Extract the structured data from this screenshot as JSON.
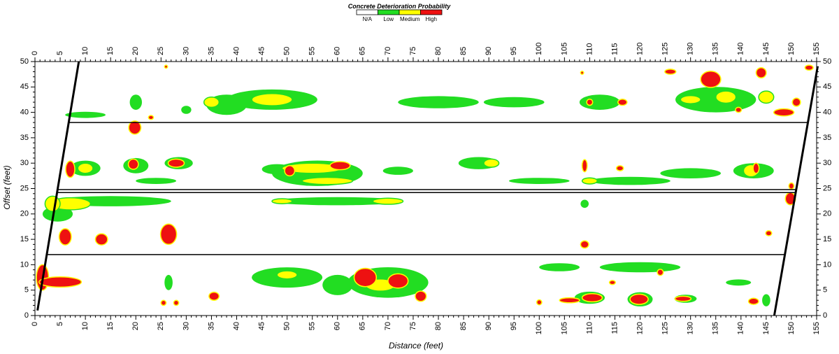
{
  "chart_data": {
    "type": "heatmap",
    "title": "",
    "xlabel": "Distance (feet)",
    "ylabel": "Offset (feet)",
    "xlim": [
      0,
      155
    ],
    "ylim": [
      0,
      50
    ],
    "x_ticks": [
      0,
      5,
      10,
      15,
      20,
      25,
      30,
      35,
      40,
      45,
      50,
      55,
      60,
      65,
      70,
      75,
      80,
      85,
      90,
      95,
      100,
      105,
      110,
      115,
      120,
      125,
      130,
      135,
      140,
      145,
      150,
      155
    ],
    "y_ticks": [
      0,
      5,
      10,
      15,
      20,
      25,
      30,
      35,
      40,
      45,
      50
    ],
    "x_tick_labels_top_and_bottom": true,
    "y_tick_labels_left_and_right": true,
    "grid": false,
    "legend": {
      "title": "Concrete Deterioration Probability",
      "placement": "top-center",
      "entries": [
        {
          "label": "N/A",
          "color": "#ffffff"
        },
        {
          "label": "Low",
          "color": "#22dd22"
        },
        {
          "label": "Medium",
          "color": "#ffff00"
        },
        {
          "label": "High",
          "color": "#ee1111"
        }
      ]
    },
    "colors": {
      "na": "#ffffff",
      "low": "#22dd22",
      "medium": "#ffff00",
      "high": "#ee1111"
    },
    "boundary_lines": [
      {
        "name": "left-edge",
        "points": [
          [
            0.5,
            1
          ],
          [
            8.7,
            50
          ]
        ],
        "style": "thick"
      },
      {
        "name": "right-edge",
        "points": [
          [
            146.6,
            0
          ],
          [
            155.2,
            49
          ]
        ],
        "style": "thick"
      },
      {
        "name": "joint-38",
        "points": [
          [
            6.8,
            38
          ],
          [
            153.1,
            38
          ]
        ],
        "style": "thin"
      },
      {
        "name": "joint-24.8",
        "points": [
          [
            4.5,
            24.8
          ],
          [
            151.0,
            24.8
          ]
        ],
        "style": "thin"
      },
      {
        "name": "joint-24.2",
        "points": [
          [
            4.4,
            24.2
          ],
          [
            150.9,
            24.2
          ]
        ],
        "style": "thin"
      },
      {
        "name": "joint-12",
        "points": [
          [
            2.4,
            12
          ],
          [
            148.9,
            12
          ]
        ],
        "style": "thin"
      }
    ],
    "patches": [
      {
        "x": 1.5,
        "y": 7.5,
        "rx": 1.2,
        "ry": 2.5,
        "level": "high"
      },
      {
        "x": 5.0,
        "y": 6.6,
        "rx": 4.2,
        "ry": 1.0,
        "level": "high"
      },
      {
        "x": 26.5,
        "y": 16.0,
        "rx": 1.6,
        "ry": 2.0,
        "level": "high"
      },
      {
        "x": 6.0,
        "y": 15.5,
        "rx": 1.2,
        "ry": 1.6,
        "level": "high"
      },
      {
        "x": 13.2,
        "y": 15.0,
        "rx": 1.2,
        "ry": 1.1,
        "level": "high"
      },
      {
        "x": 19.8,
        "y": 37.0,
        "rx": 1.2,
        "ry": 1.3,
        "level": "high"
      },
      {
        "x": 19.5,
        "y": 29.8,
        "rx": 1.0,
        "ry": 1.0,
        "level": "high"
      },
      {
        "x": 28.0,
        "y": 30.0,
        "rx": 1.6,
        "ry": 0.8,
        "level": "high"
      },
      {
        "x": 7.0,
        "y": 28.8,
        "rx": 0.9,
        "ry": 1.6,
        "level": "high"
      },
      {
        "x": 60.5,
        "y": 29.5,
        "rx": 2.0,
        "ry": 0.8,
        "level": "high"
      },
      {
        "x": 50.5,
        "y": 28.5,
        "rx": 1.0,
        "ry": 1.0,
        "level": "high"
      },
      {
        "x": 65.5,
        "y": 7.5,
        "rx": 2.2,
        "ry": 1.8,
        "level": "high"
      },
      {
        "x": 72.0,
        "y": 6.8,
        "rx": 2.0,
        "ry": 1.4,
        "level": "high"
      },
      {
        "x": 76.5,
        "y": 3.8,
        "rx": 1.1,
        "ry": 1.0,
        "level": "high"
      },
      {
        "x": 35.5,
        "y": 3.8,
        "rx": 1.0,
        "ry": 0.8,
        "level": "high"
      },
      {
        "x": 28.0,
        "y": 2.5,
        "rx": 0.5,
        "ry": 0.5,
        "level": "high"
      },
      {
        "x": 25.5,
        "y": 2.5,
        "rx": 0.5,
        "ry": 0.5,
        "level": "high"
      },
      {
        "x": 110.5,
        "y": 3.5,
        "rx": 2.0,
        "ry": 0.8,
        "level": "high"
      },
      {
        "x": 106.0,
        "y": 3.0,
        "rx": 2.0,
        "ry": 0.5,
        "level": "high"
      },
      {
        "x": 119.8,
        "y": 3.2,
        "rx": 1.8,
        "ry": 1.0,
        "level": "high"
      },
      {
        "x": 128.5,
        "y": 3.3,
        "rx": 1.6,
        "ry": 0.5,
        "level": "high"
      },
      {
        "x": 142.5,
        "y": 2.8,
        "rx": 1.0,
        "ry": 0.6,
        "level": "high"
      },
      {
        "x": 100.0,
        "y": 2.6,
        "rx": 0.5,
        "ry": 0.5,
        "level": "high"
      },
      {
        "x": 109.0,
        "y": 14.0,
        "rx": 0.8,
        "ry": 0.7,
        "level": "high"
      },
      {
        "x": 145.5,
        "y": 16.2,
        "rx": 0.6,
        "ry": 0.5,
        "level": "high"
      },
      {
        "x": 109.0,
        "y": 29.5,
        "rx": 0.5,
        "ry": 1.2,
        "level": "high"
      },
      {
        "x": 116.0,
        "y": 29.0,
        "rx": 0.7,
        "ry": 0.5,
        "level": "high"
      },
      {
        "x": 143.0,
        "y": 29.0,
        "rx": 0.6,
        "ry": 1.0,
        "level": "high"
      },
      {
        "x": 150.0,
        "y": 25.5,
        "rx": 0.5,
        "ry": 0.6,
        "level": "high"
      },
      {
        "x": 149.8,
        "y": 23.0,
        "rx": 1.0,
        "ry": 1.2,
        "level": "high"
      },
      {
        "x": 134.0,
        "y": 46.5,
        "rx": 2.0,
        "ry": 1.6,
        "level": "high"
      },
      {
        "x": 126.0,
        "y": 48.0,
        "rx": 1.1,
        "ry": 0.5,
        "level": "high"
      },
      {
        "x": 144.0,
        "y": 47.8,
        "rx": 1.0,
        "ry": 1.0,
        "level": "high"
      },
      {
        "x": 148.5,
        "y": 40.0,
        "rx": 2.0,
        "ry": 0.7,
        "level": "high"
      },
      {
        "x": 151.0,
        "y": 42.0,
        "rx": 0.8,
        "ry": 0.8,
        "level": "high"
      },
      {
        "x": 153.5,
        "y": 48.8,
        "rx": 0.8,
        "ry": 0.5,
        "level": "high"
      },
      {
        "x": 110.0,
        "y": 42.0,
        "rx": 0.6,
        "ry": 0.6,
        "level": "high"
      },
      {
        "x": 116.5,
        "y": 42.0,
        "rx": 0.9,
        "ry": 0.6,
        "level": "high"
      },
      {
        "x": 108.5,
        "y": 47.8,
        "rx": 0.3,
        "ry": 0.3,
        "level": "high"
      },
      {
        "x": 124.0,
        "y": 8.5,
        "rx": 0.6,
        "ry": 0.6,
        "level": "high"
      },
      {
        "x": 114.5,
        "y": 6.5,
        "rx": 0.6,
        "ry": 0.4,
        "level": "high"
      },
      {
        "x": 139.5,
        "y": 40.5,
        "rx": 0.6,
        "ry": 0.5,
        "level": "high"
      },
      {
        "x": 23.0,
        "y": 39.0,
        "rx": 0.5,
        "ry": 0.4,
        "level": "high"
      },
      {
        "x": 26.0,
        "y": 49.0,
        "rx": 0.3,
        "ry": 0.3,
        "level": "high"
      },
      {
        "x": 47.0,
        "y": 42.5,
        "rx": 4.0,
        "ry": 1.2,
        "level": "medium"
      },
      {
        "x": 55.0,
        "y": 29.0,
        "rx": 6.0,
        "ry": 1.0,
        "level": "medium"
      },
      {
        "x": 58.0,
        "y": 26.5,
        "rx": 5.0,
        "ry": 0.7,
        "level": "medium"
      },
      {
        "x": 70.0,
        "y": 22.5,
        "rx": 3.0,
        "ry": 0.6,
        "level": "medium"
      },
      {
        "x": 49.0,
        "y": 22.5,
        "rx": 2.0,
        "ry": 0.5,
        "level": "medium"
      },
      {
        "x": 7.0,
        "y": 22.0,
        "rx": 4.0,
        "ry": 1.2,
        "level": "medium"
      },
      {
        "x": 68.5,
        "y": 6.0,
        "rx": 3.0,
        "ry": 1.2,
        "level": "medium"
      },
      {
        "x": 50.0,
        "y": 8.0,
        "rx": 2.0,
        "ry": 0.8,
        "level": "medium"
      },
      {
        "x": 130.0,
        "y": 42.5,
        "rx": 2.0,
        "ry": 0.8,
        "level": "medium"
      },
      {
        "x": 137.0,
        "y": 43.0,
        "rx": 2.0,
        "ry": 1.2,
        "level": "medium"
      },
      {
        "x": 145.0,
        "y": 43.0,
        "rx": 1.5,
        "ry": 1.2,
        "level": "medium"
      },
      {
        "x": 142.0,
        "y": 28.5,
        "rx": 1.5,
        "ry": 1.2,
        "level": "medium"
      },
      {
        "x": 10.0,
        "y": 29.0,
        "rx": 1.5,
        "ry": 1.0,
        "level": "medium"
      },
      {
        "x": 35.0,
        "y": 42.0,
        "rx": 1.5,
        "ry": 1.0,
        "level": "medium"
      },
      {
        "x": 3.5,
        "y": 22.0,
        "rx": 1.5,
        "ry": 1.5,
        "level": "medium"
      },
      {
        "x": 90.5,
        "y": 30.0,
        "rx": 1.5,
        "ry": 0.8,
        "level": "medium"
      },
      {
        "x": 110.0,
        "y": 26.5,
        "rx": 1.5,
        "ry": 0.6,
        "level": "medium"
      },
      {
        "x": 47.0,
        "y": 42.5,
        "rx": 9.0,
        "ry": 2.0,
        "level": "low"
      },
      {
        "x": 38.0,
        "y": 41.5,
        "rx": 4.0,
        "ry": 2.0,
        "level": "low"
      },
      {
        "x": 56.0,
        "y": 28.0,
        "rx": 9.0,
        "ry": 2.5,
        "level": "low"
      },
      {
        "x": 48.0,
        "y": 28.8,
        "rx": 3.0,
        "ry": 1.0,
        "level": "low"
      },
      {
        "x": 60.0,
        "y": 22.5,
        "rx": 13.0,
        "ry": 0.8,
        "level": "low"
      },
      {
        "x": 15.0,
        "y": 22.5,
        "rx": 12.0,
        "ry": 1.0,
        "level": "low"
      },
      {
        "x": 4.5,
        "y": 20.0,
        "rx": 3.0,
        "ry": 1.5,
        "level": "low"
      },
      {
        "x": 70.0,
        "y": 6.5,
        "rx": 8.0,
        "ry": 3.0,
        "level": "low"
      },
      {
        "x": 50.0,
        "y": 7.5,
        "rx": 7.0,
        "ry": 2.0,
        "level": "low"
      },
      {
        "x": 60.0,
        "y": 6.0,
        "rx": 3.0,
        "ry": 2.0,
        "level": "low"
      },
      {
        "x": 135.0,
        "y": 42.5,
        "rx": 8.0,
        "ry": 2.5,
        "level": "low"
      },
      {
        "x": 142.5,
        "y": 28.5,
        "rx": 4.0,
        "ry": 1.5,
        "level": "low"
      },
      {
        "x": 130.0,
        "y": 28.0,
        "rx": 6.0,
        "ry": 1.0,
        "level": "low"
      },
      {
        "x": 118.0,
        "y": 26.5,
        "rx": 8.0,
        "ry": 0.8,
        "level": "low"
      },
      {
        "x": 100.0,
        "y": 26.5,
        "rx": 6.0,
        "ry": 0.6,
        "level": "low"
      },
      {
        "x": 88.0,
        "y": 30.0,
        "rx": 4.0,
        "ry": 1.2,
        "level": "low"
      },
      {
        "x": 72.0,
        "y": 28.5,
        "rx": 3.0,
        "ry": 0.8,
        "level": "low"
      },
      {
        "x": 80.0,
        "y": 42.0,
        "rx": 8.0,
        "ry": 1.2,
        "level": "low"
      },
      {
        "x": 95.0,
        "y": 42.0,
        "rx": 6.0,
        "ry": 1.0,
        "level": "low"
      },
      {
        "x": 112.0,
        "y": 42.0,
        "rx": 4.0,
        "ry": 1.5,
        "level": "low"
      },
      {
        "x": 120.0,
        "y": 9.5,
        "rx": 8.0,
        "ry": 1.0,
        "level": "low"
      },
      {
        "x": 104.0,
        "y": 9.5,
        "rx": 4.0,
        "ry": 0.8,
        "level": "low"
      },
      {
        "x": 110.0,
        "y": 3.5,
        "rx": 3.0,
        "ry": 1.2,
        "level": "low"
      },
      {
        "x": 120.0,
        "y": 3.2,
        "rx": 2.5,
        "ry": 1.4,
        "level": "low"
      },
      {
        "x": 10.0,
        "y": 29.0,
        "rx": 3.0,
        "ry": 1.5,
        "level": "low"
      },
      {
        "x": 20.0,
        "y": 29.5,
        "rx": 2.5,
        "ry": 1.5,
        "level": "low"
      },
      {
        "x": 28.5,
        "y": 30.0,
        "rx": 2.8,
        "ry": 1.2,
        "level": "low"
      },
      {
        "x": 24.0,
        "y": 26.5,
        "rx": 4.0,
        "ry": 0.6,
        "level": "low"
      },
      {
        "x": 10.0,
        "y": 39.5,
        "rx": 4.0,
        "ry": 0.6,
        "level": "low"
      },
      {
        "x": 20.0,
        "y": 42.0,
        "rx": 1.2,
        "ry": 1.5,
        "level": "low"
      },
      {
        "x": 30.0,
        "y": 40.5,
        "rx": 1.0,
        "ry": 0.8,
        "level": "low"
      },
      {
        "x": 139.5,
        "y": 6.5,
        "rx": 2.5,
        "ry": 0.6,
        "level": "low"
      },
      {
        "x": 145.0,
        "y": 3.0,
        "rx": 0.8,
        "ry": 1.2,
        "level": "low"
      },
      {
        "x": 129.0,
        "y": 3.3,
        "rx": 2.2,
        "ry": 0.8,
        "level": "low"
      },
      {
        "x": 26.5,
        "y": 6.5,
        "rx": 0.8,
        "ry": 1.5,
        "level": "low"
      },
      {
        "x": 109.0,
        "y": 22.0,
        "rx": 0.8,
        "ry": 0.8,
        "level": "low"
      }
    ]
  }
}
